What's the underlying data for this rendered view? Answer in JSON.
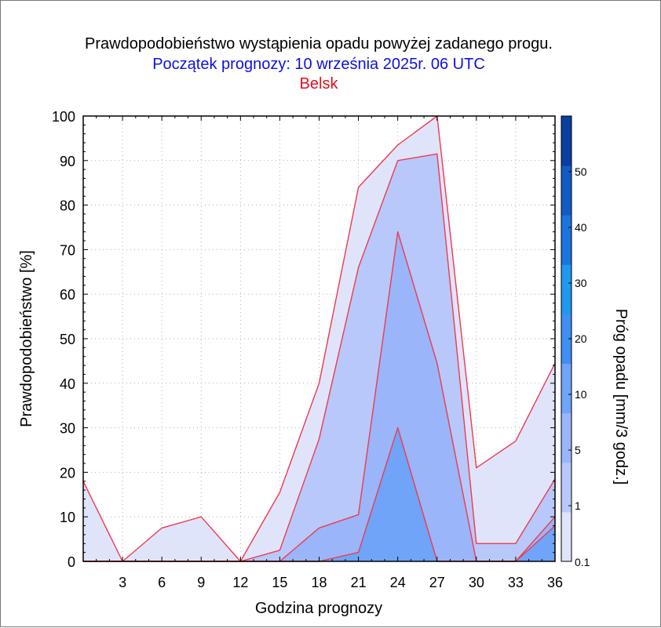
{
  "chart_data": {
    "type": "area",
    "title": "Prawdopodobieństwo wystąpienia opadu powyżej zadanego progu.",
    "subtitle": "Początek prognozy: 10 września 2025r. 06 UTC",
    "location": "Belsk",
    "xlabel": "Godzina prognozy",
    "ylabel": "Prawdopodobieństwo [%]",
    "colorbar_label": "Próg opadu [mm/3 godz.]",
    "xlim": [
      0,
      36
    ],
    "ylim": [
      0,
      100
    ],
    "x": [
      0,
      3,
      6,
      9,
      12,
      15,
      18,
      21,
      24,
      27,
      30,
      33,
      36
    ],
    "x_tick_labels": [
      "3",
      "6",
      "9",
      "12",
      "15",
      "18",
      "21",
      "24",
      "27",
      "30",
      "33",
      "36"
    ],
    "x_tick_values": [
      3,
      6,
      9,
      12,
      15,
      18,
      21,
      24,
      27,
      30,
      33,
      36
    ],
    "y_tick_labels": [
      "0",
      "10",
      "20",
      "30",
      "40",
      "50",
      "60",
      "70",
      "80",
      "90",
      "100"
    ],
    "y_tick_values": [
      0,
      10,
      20,
      30,
      40,
      50,
      60,
      70,
      80,
      90,
      100
    ],
    "grid": true,
    "series": [
      {
        "name": "0.1",
        "color": "#dfe4fb",
        "values": [
          18,
          0,
          7.5,
          10,
          0,
          15.5,
          40,
          84,
          93.5,
          100,
          21,
          27,
          44.5
        ]
      },
      {
        "name": "1",
        "color": "#b8c8fa",
        "values": [
          0,
          0,
          0,
          0,
          0,
          2.5,
          27.5,
          66,
          90,
          91.5,
          4,
          4,
          18.5
        ]
      },
      {
        "name": "5",
        "color": "#9ab5fa",
        "values": [
          0,
          0,
          0,
          0,
          0,
          0,
          7.5,
          10.5,
          74,
          44.5,
          0,
          0,
          10
        ]
      },
      {
        "name": "10",
        "color": "#6fa4f8",
        "values": [
          0,
          0,
          0,
          0,
          0,
          0,
          0,
          2,
          30,
          0,
          0,
          0,
          8
        ]
      }
    ],
    "line_color": "#f03a4a",
    "colorbar": {
      "tick_labels": [
        "0.1",
        "1",
        "5",
        "10",
        "20",
        "30",
        "40",
        "50"
      ],
      "colors": [
        "#dfe4fb",
        "#b8c8fa",
        "#9ab5fa",
        "#6fa4f8",
        "#3f8ff5",
        "#1f98f0",
        "#1c74e0",
        "#125bc7",
        "#0a3ea0"
      ],
      "fractions": [
        0,
        0.125,
        0.25,
        0.375,
        0.5,
        0.625,
        0.75,
        0.875,
        1
      ]
    },
    "title_color": "#000000",
    "subtitle_color": "#1010e0",
    "location_color": "#e01020"
  }
}
